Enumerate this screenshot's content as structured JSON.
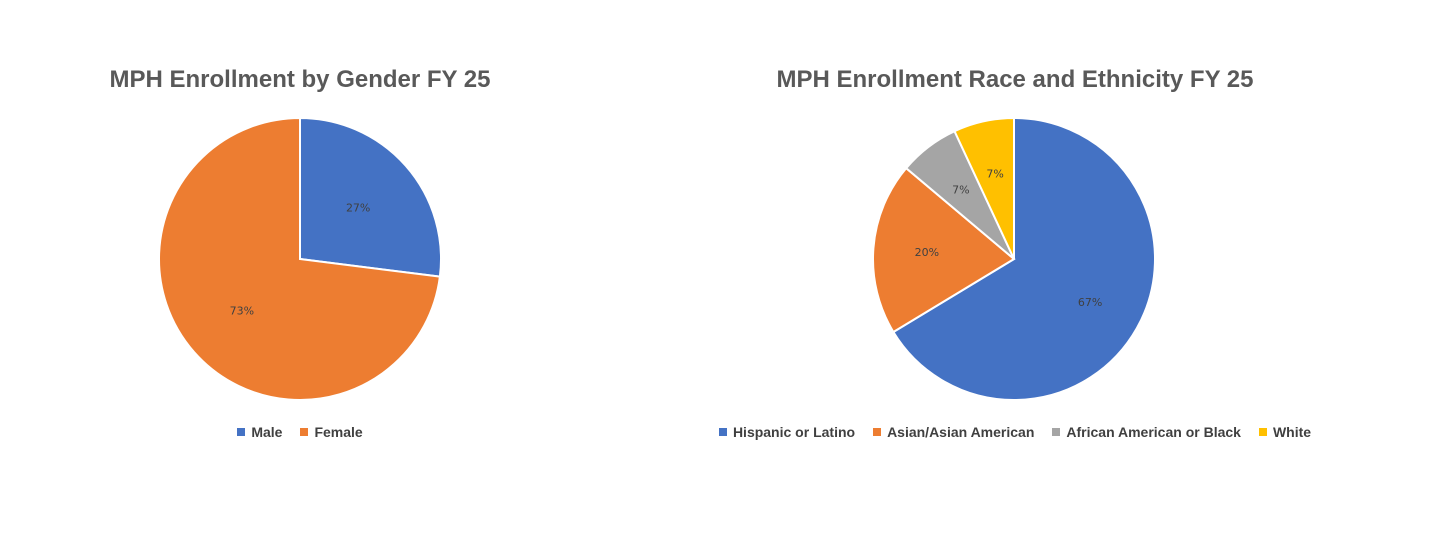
{
  "chart_data": [
    {
      "type": "pie",
      "title": "MPH Enrollment by Gender FY 25",
      "categories": [
        "Male",
        "Female"
      ],
      "values": [
        27,
        73
      ],
      "labels": [
        "27%",
        "73%"
      ],
      "colors": [
        "#4472C4",
        "#ED7D31"
      ],
      "legend_position": "bottom"
    },
    {
      "type": "pie",
      "title": "MPH Enrollment Race and Ethnicity FY 25",
      "categories": [
        "Hispanic or Latino",
        "Asian/Asian American",
        "African American or Black",
        "White"
      ],
      "values": [
        67,
        20,
        7,
        7
      ],
      "labels": [
        "67%",
        "20%",
        "7%",
        "7%"
      ],
      "colors": [
        "#4472C4",
        "#ED7D31",
        "#A5A5A5",
        "#FFC000"
      ],
      "legend_position": "bottom"
    }
  ]
}
